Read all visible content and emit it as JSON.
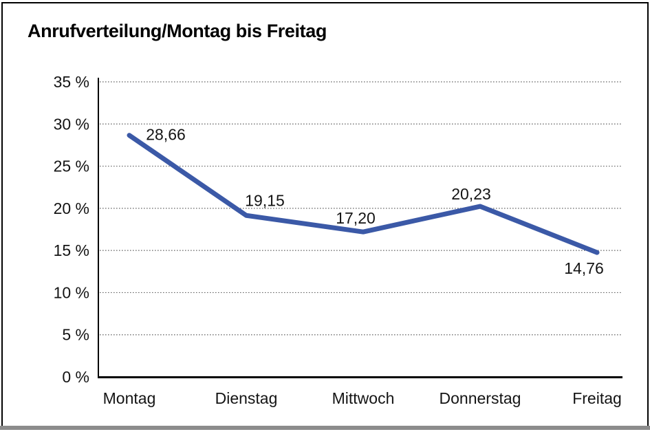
{
  "window": {
    "title": "Anrufverteilung/Montag bis Freitag"
  },
  "chart_data": {
    "type": "line",
    "title": "Anrufverteilung/Montag bis Freitag",
    "categories": [
      "Montag",
      "Dienstag",
      "Mittwoch",
      "Donnerstag",
      "Freitag"
    ],
    "series": [
      {
        "name": "Anrufverteilung",
        "values": [
          28.66,
          19.15,
          17.2,
          20.23,
          14.76
        ]
      }
    ],
    "value_labels": [
      "28,66",
      "19,15",
      "17,20",
      "20,23",
      "14,76"
    ],
    "xlabel": "",
    "ylabel": "",
    "ylim": [
      0,
      35
    ],
    "ytick_step": 5,
    "ytick_labels": [
      "0 %",
      "5 %",
      "10 %",
      "15 %",
      "20 %",
      "25 %",
      "30 %",
      "35 %"
    ],
    "grid": "horizontal-dotted",
    "legend_position": "none",
    "line_color": "#3B59A7",
    "axis_color": "#000000",
    "gridline_color": "#666666",
    "text_color": "#141414"
  }
}
